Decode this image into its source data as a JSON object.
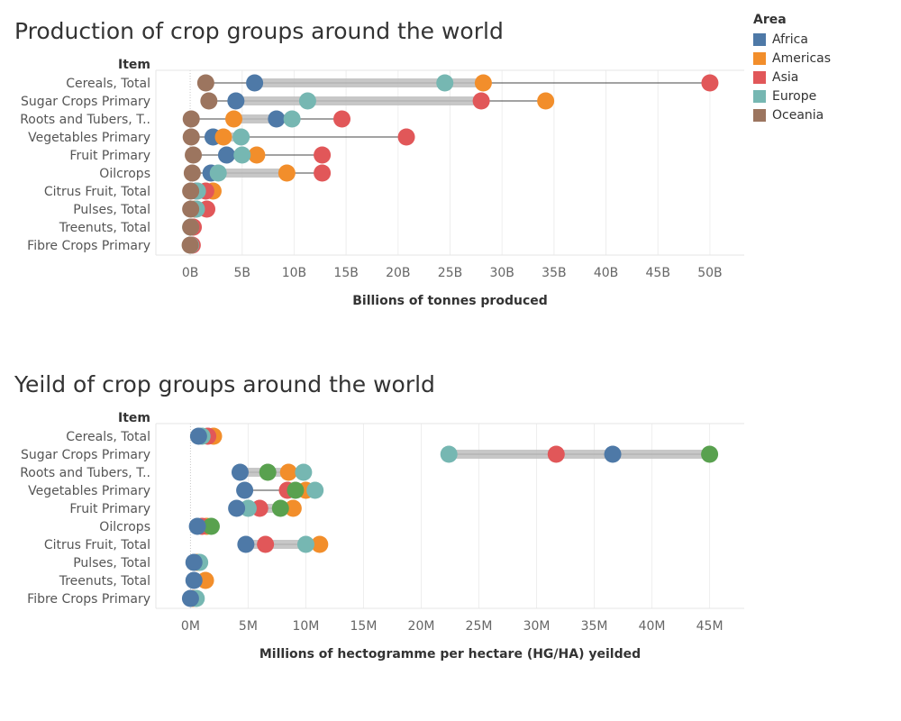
{
  "legend": {
    "title": "Area",
    "items": [
      {
        "name": "Africa",
        "color": "#4e79a7"
      },
      {
        "name": "Americas",
        "color": "#f28e2b"
      },
      {
        "name": "Asia",
        "color": "#e15759"
      },
      {
        "name": "Europe",
        "color": "#76b7b2"
      },
      {
        "name": "Oceania",
        "color": "#9c755f"
      }
    ]
  },
  "chart_data": [
    {
      "type": "scatter",
      "title": "Production of crop groups around the world",
      "item_header": "Item",
      "xlabel": "Billions of tonnes produced",
      "xlim": [
        -3.3,
        53.3
      ],
      "x_ticks": [
        0,
        5,
        10,
        15,
        20,
        25,
        30,
        35,
        40,
        45,
        50
      ],
      "x_tick_labels": [
        "0B",
        "5B",
        "10B",
        "15B",
        "20B",
        "25B",
        "30B",
        "35B",
        "40B",
        "45B",
        "50B"
      ],
      "grid": true,
      "categories": [
        "Cereals, Total",
        "Sugar Crops Primary",
        "Roots and Tubers, T..",
        "Vegetables Primary",
        "Fruit Primary",
        "Oilcrops",
        "Citrus Fruit, Total",
        "Pulses, Total",
        "Treenuts, Total",
        "Fibre Crops Primary"
      ],
      "series": [
        {
          "name": "Africa",
          "color": "#4e79a7",
          "values": [
            6.2,
            4.4,
            8.3,
            2.2,
            3.5,
            2.0,
            0.6,
            0.5,
            0.1,
            0.05
          ]
        },
        {
          "name": "Americas",
          "color": "#f28e2b",
          "values": [
            28.2,
            34.2,
            4.2,
            3.2,
            6.4,
            9.3,
            2.2,
            0.5,
            0.2,
            0.1
          ]
        },
        {
          "name": "Asia",
          "color": "#e15759",
          "values": [
            50.0,
            28.0,
            14.6,
            20.8,
            12.7,
            12.7,
            1.5,
            1.6,
            0.3,
            0.2
          ]
        },
        {
          "name": "Europe",
          "color": "#76b7b2",
          "values": [
            24.5,
            11.3,
            9.8,
            4.9,
            5.0,
            2.7,
            0.7,
            0.6,
            0.05,
            0.05
          ]
        },
        {
          "name": "Oceania",
          "color": "#9c755f",
          "values": [
            1.5,
            1.8,
            0.1,
            0.1,
            0.3,
            0.2,
            0.05,
            0.05,
            0.05,
            0.0
          ]
        }
      ]
    },
    {
      "type": "scatter",
      "title": "Yeild of crop groups around the world",
      "item_header": "Item",
      "xlabel": "Millions of hectogramme per hectare (HG/HA) yeilded",
      "xlim": [
        -3.0,
        48.0
      ],
      "x_ticks": [
        0,
        5,
        10,
        15,
        20,
        25,
        30,
        35,
        40,
        45
      ],
      "x_tick_labels": [
        "0M",
        "5M",
        "10M",
        "15M",
        "20M",
        "25M",
        "30M",
        "35M",
        "40M",
        "45M"
      ],
      "grid": true,
      "categories": [
        "Cereals, Total",
        "Sugar Crops Primary",
        "Roots and Tubers, T..",
        "Vegetables Primary",
        "Fruit Primary",
        "Oilcrops",
        "Citrus Fruit, Total",
        "Pulses, Total",
        "Treenuts, Total",
        "Fibre Crops Primary"
      ],
      "series": [
        {
          "name": "Americas",
          "color": "#f28e2b",
          "values": [
            2.0,
            null,
            8.5,
            10.0,
            8.9,
            1.4,
            11.2,
            0.6,
            1.3,
            0.2
          ]
        },
        {
          "name": "Asia",
          "color": "#e15759",
          "values": [
            1.5,
            31.7,
            null,
            8.4,
            6.0,
            1.0,
            6.5,
            null,
            null,
            null
          ]
        },
        {
          "name": "Europe",
          "color": "#76b7b2",
          "values": [
            1.0,
            22.4,
            9.8,
            10.8,
            5.0,
            null,
            10.0,
            0.8,
            null,
            0.5
          ]
        },
        {
          "name": "",
          "color": "#59a14f",
          "values": [
            null,
            45.0,
            6.7,
            9.1,
            7.8,
            1.8,
            null,
            null,
            null,
            null
          ]
        },
        {
          "name": "Africa",
          "color": "#4e79a7",
          "values": [
            0.7,
            36.6,
            4.3,
            4.7,
            4.0,
            0.6,
            4.8,
            0.3,
            0.3,
            0.0
          ]
        }
      ]
    }
  ]
}
